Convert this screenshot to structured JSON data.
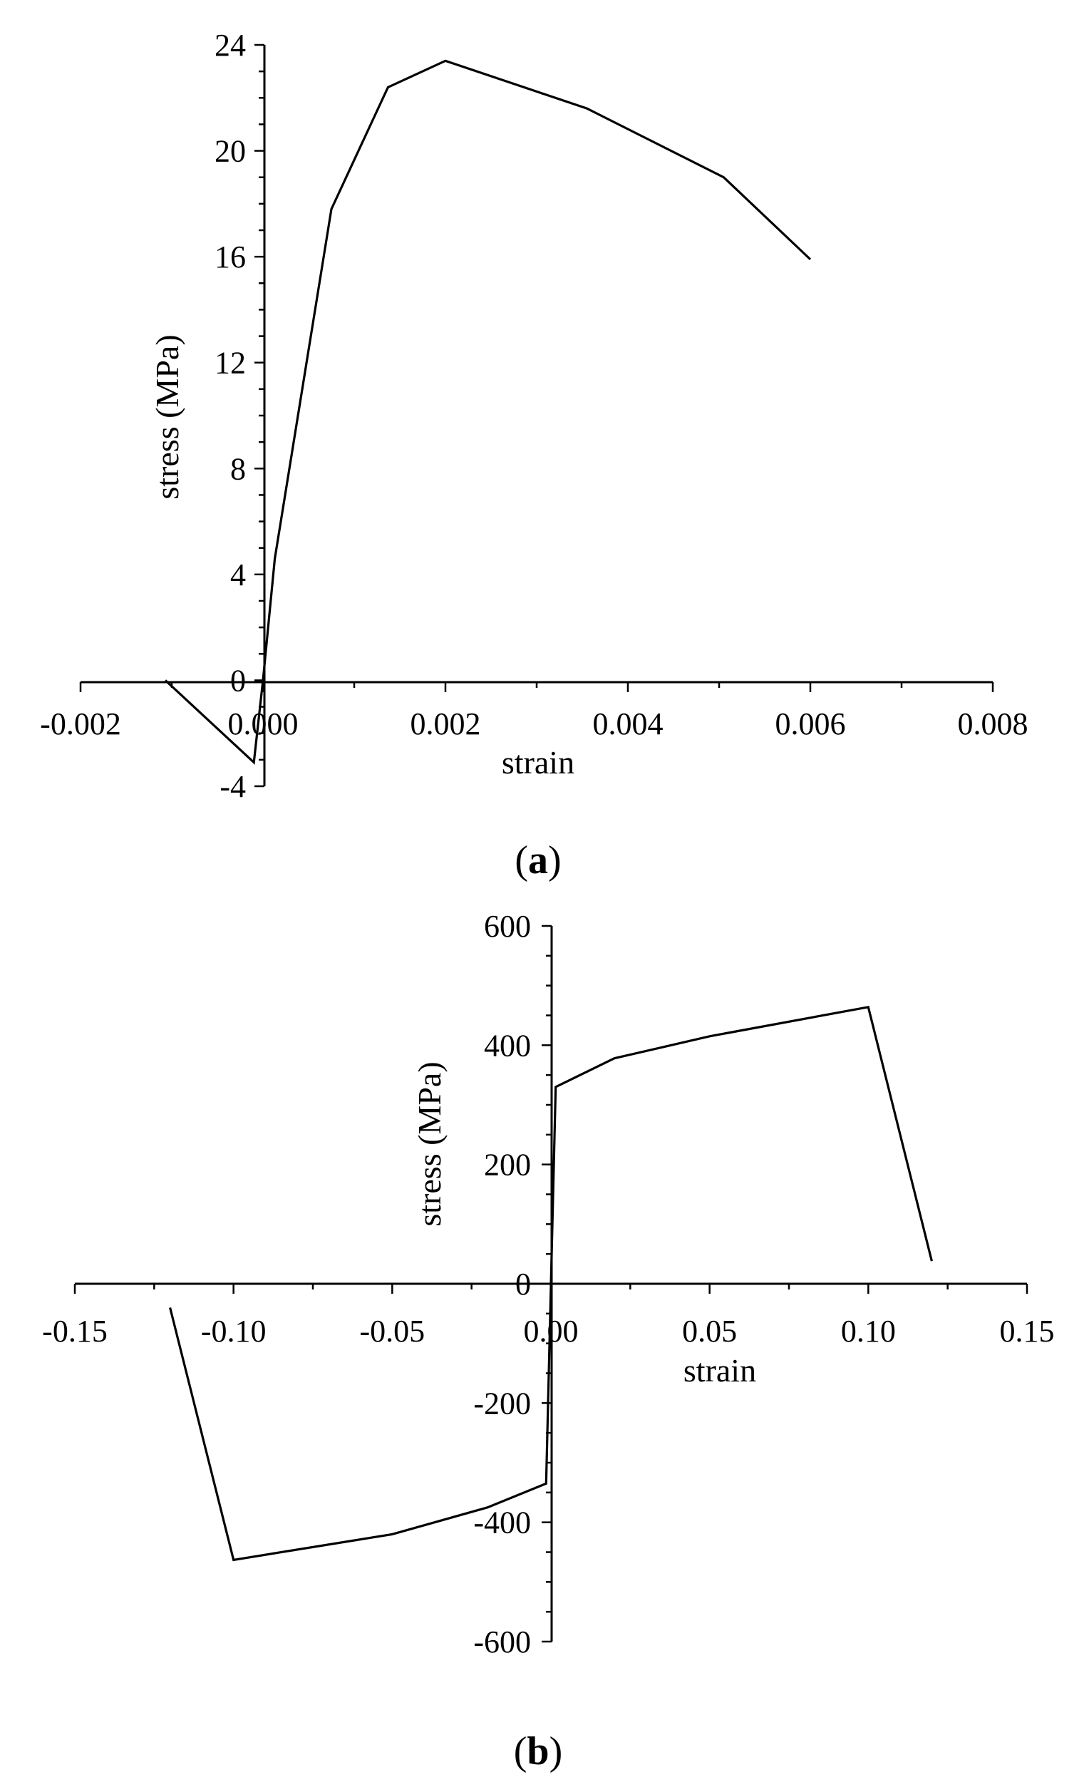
{
  "chart_data": [
    {
      "id": "a",
      "type": "line",
      "panel_label": "a",
      "xlabel": "strain",
      "ylabel": "stress (MPa)",
      "xlim": [
        -0.002,
        0.008
      ],
      "ylim": [
        -4,
        24
      ],
      "x_ticks": [
        -0.002,
        0.0,
        0.002,
        0.004,
        0.006,
        0.008
      ],
      "x_tick_labels": [
        "-0.002",
        "0.000",
        "0.002",
        "0.004",
        "0.006",
        "0.008"
      ],
      "y_ticks": [
        -4,
        0,
        4,
        8,
        12,
        16,
        20,
        24
      ],
      "y_tick_labels": [
        "-4",
        "0",
        "4",
        "8",
        "12",
        "16",
        "20",
        "24"
      ],
      "grid": false,
      "series": [
        {
          "x": [
            -0.00107,
            -0.0001,
            0.0,
            0.00013,
            0.00075,
            0.00137,
            0.002,
            0.00355,
            0.00505,
            0.006
          ],
          "y": [
            0.0,
            -3.1,
            0.0,
            4.6,
            17.8,
            22.4,
            23.4,
            21.6,
            19.0,
            15.9
          ]
        }
      ]
    },
    {
      "id": "b",
      "type": "line",
      "panel_label": "b",
      "xlabel": "strain",
      "ylabel": "stress (MPa)",
      "xlim": [
        -0.15,
        0.15
      ],
      "ylim": [
        -600,
        600
      ],
      "x_ticks": [
        -0.15,
        -0.1,
        -0.05,
        0.0,
        0.05,
        0.1,
        0.15
      ],
      "x_tick_labels": [
        "-0.15",
        "-0.10",
        "-0.05",
        "0.00",
        "0.05",
        "0.10",
        "0.15"
      ],
      "y_ticks": [
        -600,
        -400,
        -200,
        0,
        200,
        400,
        600
      ],
      "y_tick_labels": [
        "-600",
        "-400",
        "-200",
        "0",
        "200",
        "400",
        "600"
      ],
      "grid": false,
      "series": [
        {
          "x": [
            -0.12,
            -0.1,
            -0.05,
            -0.02,
            -0.0015,
            0.0015,
            0.02,
            0.05,
            0.1,
            0.12
          ],
          "y": [
            -40,
            -463,
            -420,
            -375,
            -335,
            330,
            378,
            415,
            464,
            38
          ]
        }
      ]
    }
  ]
}
